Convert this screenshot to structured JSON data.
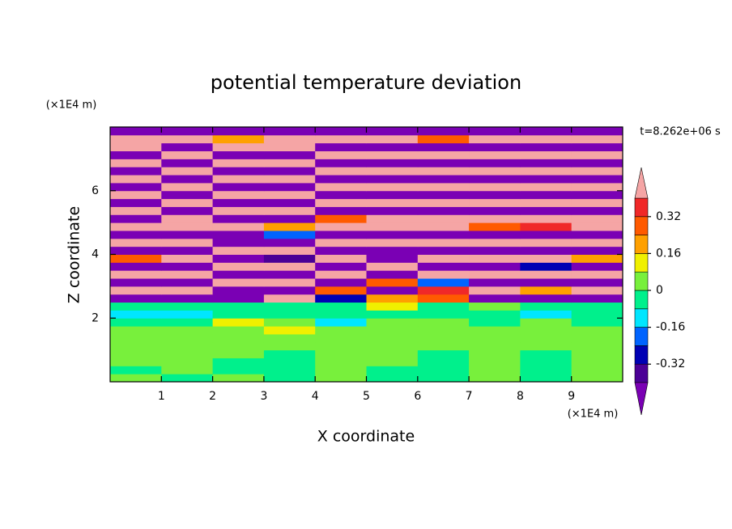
{
  "chart_data": {
    "type": "contour",
    "title": "potential temperature deviation",
    "x_label": "X coordinate",
    "y_label": "Z coordinate",
    "x_unit": "(×1E4 m)",
    "y_unit": "(×1E4 m)",
    "time_label": "t=8.262e+06 s",
    "xlim": [
      0,
      10
    ],
    "ylim": [
      0,
      8
    ],
    "xticks": [
      1,
      2,
      3,
      4,
      5,
      6,
      7,
      8,
      9
    ],
    "yticks": [
      2,
      4,
      6
    ],
    "levels": [
      -0.4,
      -0.32,
      -0.24,
      -0.16,
      -0.08,
      0,
      0.08,
      0.16,
      0.24,
      0.32,
      0.4
    ],
    "colors": [
      "#7a00b4",
      "#4b0096",
      "#0000b4",
      "#0064ff",
      "#00e6ff",
      "#00f08c",
      "#78f03c",
      "#f0f000",
      "#ffa000",
      "#ff5a00",
      "#f02828",
      "#f5a5a5"
    ],
    "colorbar_ticks": [
      -0.32,
      -0.16,
      0,
      0.16,
      0.32
    ],
    "x": [
      0.5,
      1.5,
      2.5,
      3.5,
      4.5,
      5.5,
      6.5,
      7.5,
      8.5,
      9.5
    ],
    "y": [
      0.125,
      0.375,
      0.625,
      0.875,
      1.125,
      1.375,
      1.625,
      1.875,
      2.125,
      2.375,
      2.625,
      2.875,
      3.125,
      3.375,
      3.625,
      3.875,
      4.125,
      4.375,
      4.625,
      4.875,
      5.125,
      5.375,
      5.625,
      5.875,
      6.125,
      6.375,
      6.625,
      6.875,
      7.125,
      7.375,
      7.625,
      7.875
    ],
    "z": [
      [
        0.03,
        -0.02,
        0.03,
        -0.03,
        0.02,
        -0.03,
        -0.02,
        0.03,
        -0.02,
        0.03
      ],
      [
        -0.02,
        0.03,
        -0.03,
        -0.03,
        0.03,
        -0.03,
        -0.04,
        0.02,
        -0.03,
        0.02
      ],
      [
        0.03,
        0.02,
        -0.02,
        -0.03,
        0.03,
        0.02,
        -0.04,
        0.03,
        -0.03,
        0.03
      ],
      [
        0.03,
        0.03,
        0.02,
        -0.02,
        0.03,
        0.03,
        -0.03,
        0.02,
        -0.02,
        0.03
      ],
      [
        0.04,
        0.03,
        0.03,
        0.02,
        0.04,
        0.03,
        0.02,
        0.03,
        0.03,
        0.04
      ],
      [
        0.04,
        0.04,
        0.03,
        0.03,
        0.04,
        0.04,
        0.03,
        0.04,
        0.03,
        0.04
      ],
      [
        0.03,
        0.05,
        0.04,
        0.1,
        0.05,
        0.06,
        0.04,
        0.03,
        0.05,
        0.04
      ],
      [
        -0.02,
        -0.04,
        0.1,
        0.05,
        -0.1,
        0.02,
        0.03,
        -0.03,
        0.02,
        -0.05
      ],
      [
        -0.1,
        -0.12,
        -0.06,
        -0.05,
        -0.06,
        -0.07,
        -0.05,
        -0.06,
        -0.12,
        -0.07
      ],
      [
        -0.06,
        -0.05,
        -0.03,
        -0.05,
        -0.04,
        0.1,
        -0.05,
        0.05,
        -0.06,
        -0.04
      ],
      [
        -0.45,
        -0.5,
        -0.45,
        0.5,
        -0.3,
        0.2,
        0.3,
        -0.45,
        -0.5,
        -0.5
      ],
      [
        0.5,
        0.45,
        -0.5,
        -0.45,
        0.3,
        -0.5,
        0.35,
        0.45,
        0.2,
        0.5
      ],
      [
        -0.5,
        -0.5,
        0.5,
        0.45,
        -0.45,
        0.28,
        -0.2,
        -0.5,
        -0.45,
        -0.5
      ],
      [
        0.45,
        0.5,
        -0.45,
        -0.5,
        0.5,
        -0.45,
        0.5,
        0.45,
        0.5,
        0.45
      ],
      [
        -0.5,
        -0.45,
        0.45,
        0.5,
        -0.5,
        0.5,
        -0.45,
        -0.5,
        -0.3,
        -0.5
      ],
      [
        0.3,
        0.5,
        -0.5,
        -0.35,
        0.45,
        -0.5,
        0.5,
        0.45,
        0.5,
        0.2
      ],
      [
        -0.5,
        -0.5,
        0.45,
        0.5,
        -0.5,
        -0.45,
        -0.5,
        -0.5,
        -0.45,
        -0.5
      ],
      [
        0.5,
        0.45,
        -0.5,
        -0.45,
        0.5,
        0.5,
        0.45,
        0.5,
        0.5,
        0.45
      ],
      [
        -0.45,
        -0.5,
        -0.5,
        -0.2,
        -0.45,
        -0.5,
        -0.5,
        -0.45,
        -0.5,
        -0.5
      ],
      [
        0.5,
        0.5,
        0.45,
        0.2,
        0.5,
        0.45,
        0.5,
        0.3,
        0.35,
        0.5
      ],
      [
        -0.45,
        0.45,
        -0.5,
        -0.5,
        0.3,
        0.5,
        0.45,
        0.5,
        0.5,
        0.45
      ],
      [
        0.5,
        -0.5,
        0.5,
        0.45,
        -0.5,
        -0.45,
        -0.5,
        -0.5,
        -0.45,
        -0.5
      ],
      [
        -0.5,
        0.5,
        -0.45,
        -0.5,
        0.5,
        0.5,
        0.45,
        0.5,
        0.5,
        0.45
      ],
      [
        0.45,
        -0.45,
        0.5,
        0.45,
        -0.45,
        -0.5,
        -0.5,
        -0.45,
        -0.5,
        -0.5
      ],
      [
        -0.5,
        0.5,
        -0.5,
        -0.5,
        0.45,
        0.5,
        0.5,
        0.45,
        0.5,
        0.5
      ],
      [
        0.5,
        -0.5,
        0.45,
        0.5,
        -0.5,
        -0.45,
        -0.5,
        -0.5,
        -0.45,
        -0.5
      ],
      [
        -0.45,
        0.45,
        -0.5,
        -0.45,
        0.5,
        0.5,
        0.45,
        0.5,
        0.5,
        0.45
      ],
      [
        0.5,
        -0.5,
        0.5,
        0.5,
        -0.45,
        -0.5,
        -0.5,
        -0.45,
        -0.5,
        -0.5
      ],
      [
        -0.5,
        0.5,
        -0.45,
        -0.5,
        0.5,
        0.45,
        0.5,
        0.5,
        0.45,
        0.5
      ],
      [
        0.45,
        -0.45,
        0.5,
        0.5,
        -0.5,
        -0.5,
        -0.45,
        -0.5,
        -0.5,
        -0.45
      ],
      [
        0.5,
        0.5,
        0.2,
        0.45,
        0.5,
        0.45,
        0.3,
        0.5,
        0.5,
        0.5
      ],
      [
        -0.5,
        -0.45,
        -0.5,
        -0.5,
        -0.45,
        -0.5,
        -0.5,
        -0.45,
        -0.5,
        -0.5
      ]
    ]
  }
}
